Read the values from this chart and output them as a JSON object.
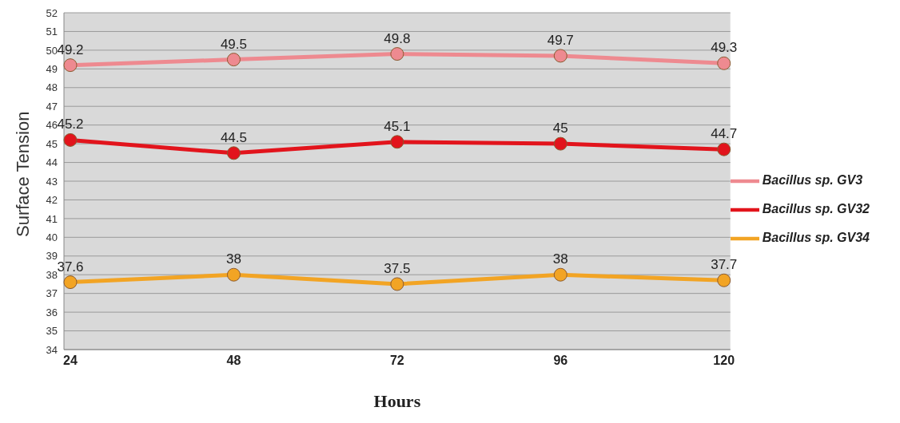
{
  "chart_data": {
    "type": "line",
    "ylabel": "Surface Tension",
    "xlabel": "Hours",
    "categories": [
      "24",
      "48",
      "72",
      "96",
      "120"
    ],
    "series": [
      {
        "name": "Bacillus sp. GV3",
        "color": "#ee8a90",
        "values": [
          49.2,
          49.5,
          49.8,
          49.7,
          49.3
        ]
      },
      {
        "name": "Bacillus sp. GV32",
        "color": "#e2141c",
        "values": [
          45.2,
          44.5,
          45.1,
          45,
          44.7
        ]
      },
      {
        "name": "Bacillus sp. GV34",
        "color": "#f2a424",
        "values": [
          37.6,
          38,
          37.5,
          38,
          37.7
        ]
      }
    ],
    "ylim": [
      34,
      52
    ],
    "yticks": [
      34,
      35,
      36,
      37,
      38,
      39,
      40,
      41,
      42,
      43,
      44,
      45,
      46,
      47,
      48,
      49,
      50,
      51,
      52
    ],
    "grid": "y",
    "legend": "right",
    "marker": "circle",
    "line_style": "solid",
    "data_labels": true
  }
}
